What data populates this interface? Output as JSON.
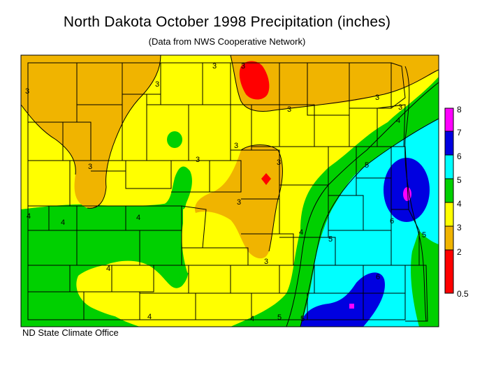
{
  "title": "North Dakota October 1998 Precipitation (inches)",
  "subtitle": "(Data from NWS Cooperative Network)",
  "footer": "ND State Climate Office",
  "legend": [
    {
      "label": "8",
      "color": "#ff00ff"
    },
    {
      "label": "7",
      "color": "#0000e0"
    },
    {
      "label": "6",
      "color": "#00ffff"
    },
    {
      "label": "5",
      "color": "#00d000"
    },
    {
      "label": "4",
      "color": "#ffff00"
    },
    {
      "label": "3",
      "color": "#f0b400"
    },
    {
      "label": "2",
      "color": "#ff0000"
    },
    {
      "label": "0.5",
      "color": null
    }
  ],
  "contour_labels": [
    "3",
    "3",
    "3",
    "3",
    "3",
    "3",
    "3",
    "3",
    "3",
    "3",
    "3",
    "3",
    "3",
    "4",
    "4",
    "4",
    "4",
    "4",
    "4",
    "4",
    "4",
    "5",
    "5",
    "5",
    "5",
    "5",
    "6",
    "6"
  ],
  "colors": {
    "under_2": "#ff0000",
    "2_to_3": "#f0b400",
    "3_to_4": "#ffff00",
    "4_to_5": "#00d000",
    "5_to_6": "#00ffff",
    "6_to_7": "#0000e0",
    "7_to_8": "#ff00ff"
  }
}
